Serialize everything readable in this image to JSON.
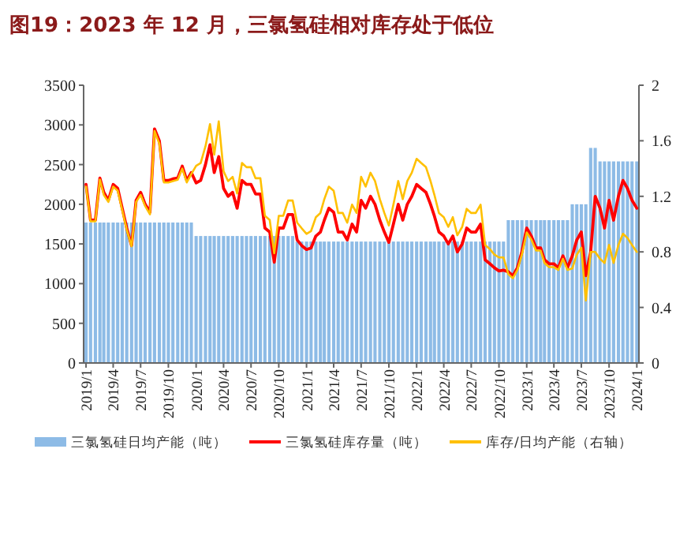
{
  "chart_data": {
    "type": "bar",
    "title": "图19：2023 年 12 月，三氯氢硅相对库存处于低位",
    "x": [
      "2019-01-01",
      "2019-01-16",
      "2019-02-01",
      "2019-02-16",
      "2019-03-01",
      "2019-03-16",
      "2019-04-01",
      "2019-04-16",
      "2019-05-01",
      "2019-05-16",
      "2019-06-01",
      "2019-06-16",
      "2019-07-01",
      "2019-07-16",
      "2019-08-01",
      "2019-08-16",
      "2019-09-01",
      "2019-09-16",
      "2019-10-01",
      "2019-10-16",
      "2019-11-01",
      "2019-11-16",
      "2019-12-01",
      "2019-12-16",
      "2020-01-01",
      "2020-01-16",
      "2020-02-01",
      "2020-02-16",
      "2020-03-01",
      "2020-03-16",
      "2020-04-01",
      "2020-04-16",
      "2020-05-01",
      "2020-05-16",
      "2020-06-01",
      "2020-06-16",
      "2020-07-01",
      "2020-07-16",
      "2020-08-01",
      "2020-08-16",
      "2020-09-01",
      "2020-09-16",
      "2020-10-01",
      "2020-10-16",
      "2020-11-01",
      "2020-11-16",
      "2020-12-01",
      "2020-12-16",
      "2021-01-01",
      "2021-01-16",
      "2021-02-01",
      "2021-02-16",
      "2021-03-01",
      "2021-03-16",
      "2021-04-01",
      "2021-04-16",
      "2021-05-01",
      "2021-05-16",
      "2021-06-01",
      "2021-06-16",
      "2021-07-01",
      "2021-07-16",
      "2021-08-01",
      "2021-08-16",
      "2021-09-01",
      "2021-09-16",
      "2021-10-01",
      "2021-10-16",
      "2021-11-01",
      "2021-11-16",
      "2021-12-01",
      "2021-12-16",
      "2022-01-01",
      "2022-01-16",
      "2022-02-01",
      "2022-02-16",
      "2022-03-01",
      "2022-03-16",
      "2022-04-01",
      "2022-04-16",
      "2022-05-01",
      "2022-05-16",
      "2022-06-01",
      "2022-06-16",
      "2022-07-01",
      "2022-07-16",
      "2022-08-01",
      "2022-08-16",
      "2022-09-01",
      "2022-09-16",
      "2022-10-01",
      "2022-10-16",
      "2022-11-01",
      "2022-11-16",
      "2022-12-01",
      "2022-12-16",
      "2023-01-01",
      "2023-01-16",
      "2023-02-01",
      "2023-02-16",
      "2023-03-01",
      "2023-03-16",
      "2023-04-01",
      "2023-04-16",
      "2023-05-01",
      "2023-05-16",
      "2023-06-01",
      "2023-06-16",
      "2023-07-01",
      "2023-07-16",
      "2023-08-01",
      "2023-08-16",
      "2023-09-01",
      "2023-09-16",
      "2023-10-01",
      "2023-10-16",
      "2023-11-01",
      "2023-11-16",
      "2023-12-01",
      "2023-12-16",
      "2024-01-01"
    ],
    "series": [
      {
        "name": "三氯氢硅日均产能（吨）",
        "color": "#8dbbe6",
        "values": [
          1770,
          1770,
          1770,
          1770,
          1770,
          1770,
          1770,
          1770,
          1770,
          1770,
          1770,
          1770,
          1770,
          1770,
          1770,
          1770,
          1770,
          1770,
          1770,
          1770,
          1770,
          1770,
          1770,
          1770,
          1600,
          1600,
          1600,
          1600,
          1600,
          1600,
          1600,
          1600,
          1600,
          1600,
          1600,
          1600,
          1600,
          1600,
          1600,
          1600,
          1600,
          1600,
          1600,
          1600,
          1600,
          1600,
          1530,
          1530,
          1530,
          1530,
          1530,
          1530,
          1530,
          1530,
          1530,
          1530,
          1530,
          1530,
          1530,
          1530,
          1530,
          1530,
          1530,
          1530,
          1530,
          1530,
          1530,
          1530,
          1530,
          1530,
          1530,
          1530,
          1530,
          1530,
          1530,
          1530,
          1530,
          1530,
          1530,
          1530,
          1530,
          1530,
          1530,
          1530,
          1530,
          1530,
          1530,
          1530,
          1530,
          1530,
          1530,
          1530,
          1800,
          1800,
          1800,
          1800,
          1800,
          1800,
          1800,
          1800,
          1800,
          1800,
          1800,
          1800,
          1800,
          1800,
          2000,
          2000,
          2000,
          2000,
          2710,
          2710,
          2540,
          2540,
          2540,
          2540,
          2540,
          2540,
          2540,
          2540,
          2540
        ]
      },
      {
        "name": "三氯氢硅库存量（吨）",
        "type": "line",
        "color": "#ff0000",
        "values": [
          2250,
          1800,
          1800,
          2330,
          2150,
          2050,
          2250,
          2200,
          1950,
          1700,
          1480,
          2050,
          2150,
          2000,
          1900,
          2950,
          2800,
          2300,
          2300,
          2320,
          2330,
          2480,
          2300,
          2400,
          2270,
          2300,
          2500,
          2750,
          2400,
          2600,
          2200,
          2100,
          2150,
          1950,
          2300,
          2250,
          2250,
          2130,
          2130,
          1700,
          1650,
          1270,
          1700,
          1700,
          1870,
          1870,
          1550,
          1480,
          1430,
          1450,
          1600,
          1650,
          1800,
          1950,
          1900,
          1650,
          1650,
          1550,
          1750,
          1650,
          2050,
          1950,
          2100,
          2000,
          1800,
          1650,
          1520,
          1750,
          2000,
          1800,
          2000,
          2100,
          2250,
          2200,
          2150,
          2000,
          1850,
          1650,
          1600,
          1500,
          1600,
          1400,
          1500,
          1700,
          1650,
          1650,
          1750,
          1300,
          1250,
          1200,
          1160,
          1170,
          1150,
          1100,
          1200,
          1400,
          1700,
          1600,
          1450,
          1450,
          1300,
          1250,
          1250,
          1200,
          1350,
          1200,
          1350,
          1550,
          1650,
          1100,
          1400,
          2100,
          1950,
          1700,
          2050,
          1800,
          2100,
          2300,
          2200,
          2050,
          1950
        ]
      },
      {
        "name": "库存/日均产能（右轴）",
        "type": "line",
        "axis": "y2",
        "color": "#ffc000",
        "values": [
          1.27,
          1.02,
          1.02,
          1.32,
          1.21,
          1.16,
          1.27,
          1.24,
          1.1,
          0.96,
          0.84,
          1.16,
          1.21,
          1.13,
          1.07,
          1.67,
          1.58,
          1.3,
          1.3,
          1.31,
          1.32,
          1.4,
          1.3,
          1.36,
          1.42,
          1.44,
          1.56,
          1.72,
          1.5,
          1.74,
          1.38,
          1.31,
          1.34,
          1.22,
          1.44,
          1.41,
          1.41,
          1.33,
          1.33,
          1.06,
          1.03,
          0.79,
          1.06,
          1.06,
          1.17,
          1.17,
          1.01,
          0.97,
          0.93,
          0.95,
          1.05,
          1.08,
          1.18,
          1.27,
          1.24,
          1.08,
          1.08,
          1.01,
          1.14,
          1.08,
          1.34,
          1.27,
          1.37,
          1.31,
          1.18,
          1.08,
          0.99,
          1.14,
          1.31,
          1.18,
          1.31,
          1.37,
          1.47,
          1.44,
          1.41,
          1.31,
          1.21,
          1.08,
          1.05,
          0.98,
          1.05,
          0.92,
          0.98,
          1.11,
          1.08,
          1.08,
          1.14,
          0.85,
          0.82,
          0.78,
          0.76,
          0.76,
          0.64,
          0.61,
          0.67,
          0.78,
          0.94,
          0.89,
          0.81,
          0.81,
          0.72,
          0.69,
          0.69,
          0.67,
          0.75,
          0.67,
          0.68,
          0.78,
          0.83,
          0.45,
          0.8,
          0.8,
          0.75,
          0.72,
          0.85,
          0.72,
          0.85,
          0.93,
          0.9,
          0.85,
          0.8
        ]
      }
    ],
    "xlim": [
      "2018-12-24",
      "2024-01-08"
    ],
    "xticks": [
      {
        "value": "2019-01-01",
        "label": "2019/1"
      },
      {
        "value": "2019-04-01",
        "label": "2019/4"
      },
      {
        "value": "2019-07-01",
        "label": "2019/7"
      },
      {
        "value": "2019-10-01",
        "label": "2019/10"
      },
      {
        "value": "2020-01-01",
        "label": "2020/1"
      },
      {
        "value": "2020-04-01",
        "label": "2020/4"
      },
      {
        "value": "2020-07-01",
        "label": "2020/7"
      },
      {
        "value": "2020-10-01",
        "label": "2020/10"
      },
      {
        "value": "2021-01-01",
        "label": "2021/1"
      },
      {
        "value": "2021-04-01",
        "label": "2021/4"
      },
      {
        "value": "2021-07-01",
        "label": "2021/7"
      },
      {
        "value": "2021-10-01",
        "label": "2021/10"
      },
      {
        "value": "2022-01-01",
        "label": "2022/1"
      },
      {
        "value": "2022-04-01",
        "label": "2022/4"
      },
      {
        "value": "2022-07-01",
        "label": "2022/7"
      },
      {
        "value": "2022-10-01",
        "label": "2022/10"
      },
      {
        "value": "2023-01-01",
        "label": "2023/1"
      },
      {
        "value": "2023-04-01",
        "label": "2023/4"
      },
      {
        "value": "2023-07-01",
        "label": "2023/7"
      },
      {
        "value": "2023-10-01",
        "label": "2023/10"
      },
      {
        "value": "2024-01-01",
        "label": "2024/1"
      }
    ],
    "ylim": [
      0,
      3500
    ],
    "yticks": [
      0,
      500,
      1000,
      1500,
      2000,
      2500,
      3000,
      3500
    ],
    "y2lim": [
      0,
      2
    ],
    "y2ticks": [
      0,
      0.4,
      0.8,
      1.2,
      1.6,
      2
    ],
    "legend": "bottom",
    "grid": false
  }
}
